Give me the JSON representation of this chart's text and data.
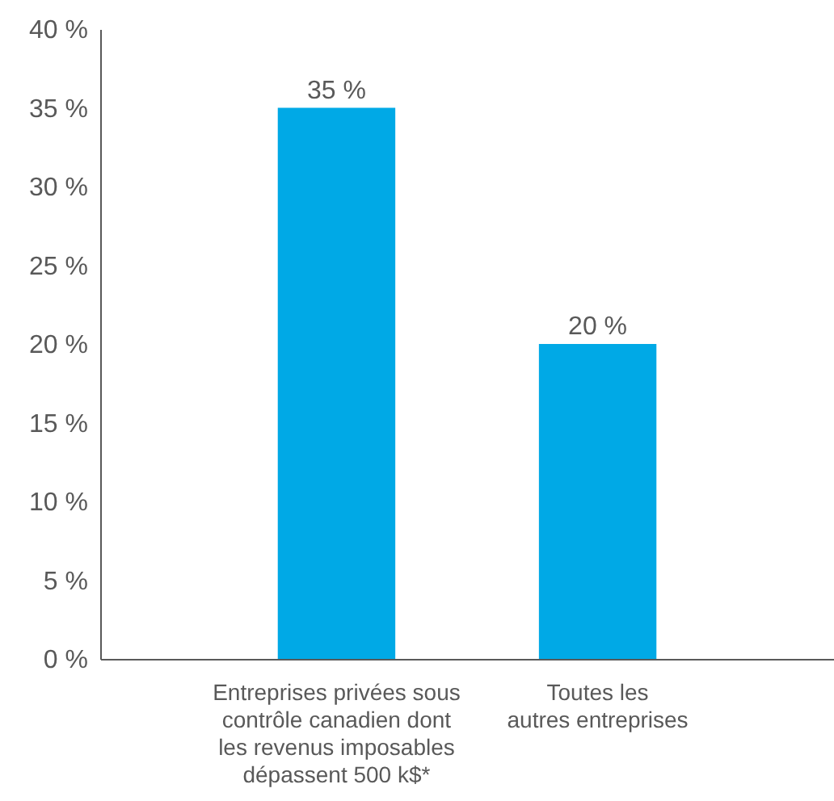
{
  "chart_data": {
    "type": "bar",
    "categories": [
      "Entreprises privées sous\ncontrôle canadien dont\nles revenus imposables\ndépassent 500 k$*",
      "Toutes les\nautres entreprises"
    ],
    "values": [
      35,
      20
    ],
    "value_labels": [
      "35 %",
      "20 %"
    ],
    "color": "#00a9e6",
    "ylim": [
      0,
      40
    ],
    "yticks": [
      {
        "value": 0,
        "label": "0 %"
      },
      {
        "value": 5,
        "label": "5 %"
      },
      {
        "value": 10,
        "label": "10 %"
      },
      {
        "value": 15,
        "label": "15 %"
      },
      {
        "value": 20,
        "label": "20 %"
      },
      {
        "value": 25,
        "label": "25 %"
      },
      {
        "value": 30,
        "label": "30 %"
      },
      {
        "value": 35,
        "label": "35 %"
      },
      {
        "value": 40,
        "label": "40 %"
      }
    ],
    "grid": false
  }
}
